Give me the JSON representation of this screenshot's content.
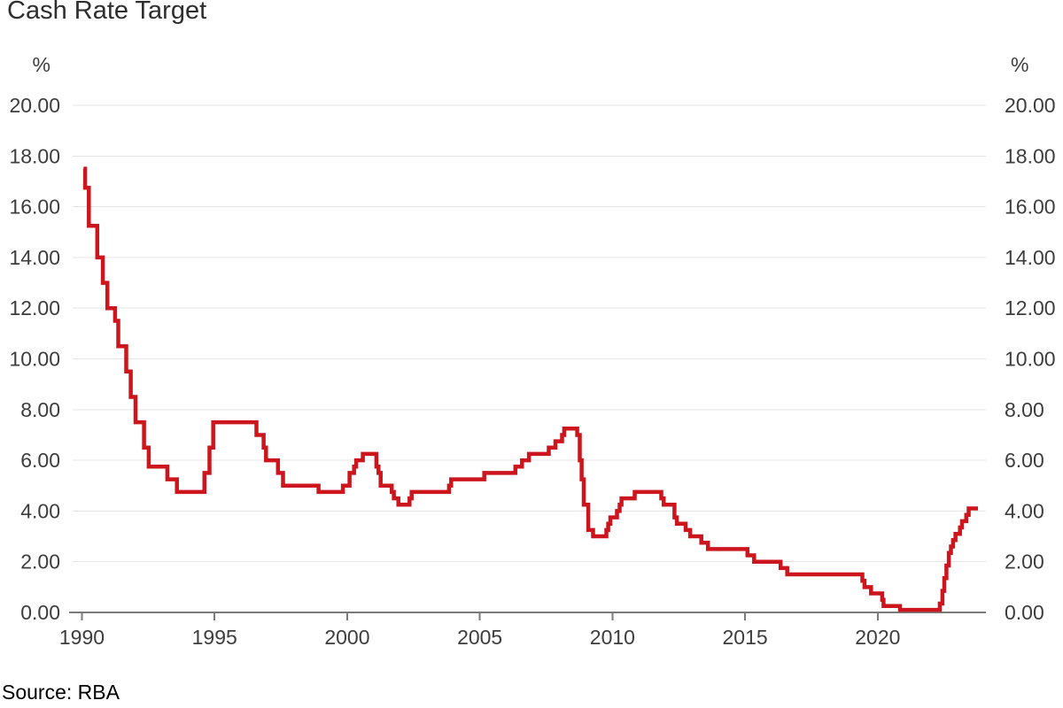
{
  "page": {
    "title": "Cash Rate Target",
    "source": "Source: RBA"
  },
  "chart_data": {
    "type": "line",
    "title": "Cash Rate Target",
    "source": "Source: RBA",
    "unit_left": "%",
    "unit_right": "%",
    "line_color": "#cc151c",
    "grid_color": "#e4e4e4",
    "axis_color": "#7a7a7a",
    "text_color": "#3d3d3d",
    "grid": true,
    "legend_position": "none",
    "xlim": [
      1989.65,
      2024.08
    ],
    "ylim": [
      0,
      20
    ],
    "x_ticks": [
      1990,
      1995,
      2000,
      2005,
      2010,
      2015,
      2020
    ],
    "y_ticks": [
      0,
      2,
      4,
      6,
      8,
      10,
      12,
      14,
      16,
      18,
      20
    ],
    "y_tick_labels": [
      "0.00",
      "2.00",
      "4.00",
      "6.00",
      "8.00",
      "10.00",
      "12.00",
      "14.00",
      "16.00",
      "18.00",
      "20.00"
    ],
    "series": [
      {
        "name": "Cash Rate Target",
        "step": "after",
        "end_x": 2023.78,
        "points": [
          [
            1990.06,
            17.5
          ],
          [
            1990.12,
            16.75
          ],
          [
            1990.26,
            15.25
          ],
          [
            1990.58,
            14.0
          ],
          [
            1990.79,
            13.0
          ],
          [
            1990.96,
            12.0
          ],
          [
            1991.25,
            11.5
          ],
          [
            1991.37,
            10.5
          ],
          [
            1991.67,
            9.5
          ],
          [
            1991.84,
            8.5
          ],
          [
            1992.02,
            7.5
          ],
          [
            1992.34,
            6.5
          ],
          [
            1992.52,
            5.75
          ],
          [
            1993.22,
            5.25
          ],
          [
            1993.58,
            4.75
          ],
          [
            1994.62,
            5.5
          ],
          [
            1994.81,
            6.5
          ],
          [
            1994.95,
            7.5
          ],
          [
            1996.58,
            7.0
          ],
          [
            1996.85,
            6.5
          ],
          [
            1996.94,
            6.0
          ],
          [
            1997.39,
            5.5
          ],
          [
            1997.58,
            5.0
          ],
          [
            1998.92,
            4.75
          ],
          [
            1999.84,
            5.0
          ],
          [
            2000.09,
            5.5
          ],
          [
            2000.26,
            5.75
          ],
          [
            2000.34,
            6.0
          ],
          [
            2000.59,
            6.25
          ],
          [
            2001.1,
            5.75
          ],
          [
            2001.18,
            5.5
          ],
          [
            2001.26,
            5.0
          ],
          [
            2001.68,
            4.75
          ],
          [
            2001.76,
            4.5
          ],
          [
            2001.93,
            4.25
          ],
          [
            2002.35,
            4.5
          ],
          [
            2002.43,
            4.75
          ],
          [
            2003.84,
            5.0
          ],
          [
            2003.92,
            5.25
          ],
          [
            2005.17,
            5.5
          ],
          [
            2006.34,
            5.75
          ],
          [
            2006.59,
            6.0
          ],
          [
            2006.85,
            6.25
          ],
          [
            2007.6,
            6.5
          ],
          [
            2007.85,
            6.75
          ],
          [
            2008.1,
            7.0
          ],
          [
            2008.18,
            7.25
          ],
          [
            2008.67,
            7.0
          ],
          [
            2008.77,
            6.0
          ],
          [
            2008.84,
            5.25
          ],
          [
            2008.92,
            4.25
          ],
          [
            2009.09,
            3.25
          ],
          [
            2009.27,
            3.0
          ],
          [
            2009.77,
            3.25
          ],
          [
            2009.84,
            3.5
          ],
          [
            2009.92,
            3.75
          ],
          [
            2010.17,
            4.0
          ],
          [
            2010.27,
            4.25
          ],
          [
            2010.34,
            4.5
          ],
          [
            2010.84,
            4.75
          ],
          [
            2011.84,
            4.5
          ],
          [
            2011.93,
            4.25
          ],
          [
            2012.34,
            3.75
          ],
          [
            2012.43,
            3.5
          ],
          [
            2012.76,
            3.25
          ],
          [
            2012.93,
            3.0
          ],
          [
            2013.35,
            2.75
          ],
          [
            2013.6,
            2.5
          ],
          [
            2015.09,
            2.25
          ],
          [
            2015.34,
            2.0
          ],
          [
            2016.34,
            1.75
          ],
          [
            2016.59,
            1.5
          ],
          [
            2019.42,
            1.25
          ],
          [
            2019.5,
            1.0
          ],
          [
            2019.75,
            0.75
          ],
          [
            2020.17,
            0.5
          ],
          [
            2020.22,
            0.25
          ],
          [
            2020.84,
            0.1
          ],
          [
            2022.34,
            0.35
          ],
          [
            2022.44,
            0.85
          ],
          [
            2022.51,
            1.35
          ],
          [
            2022.59,
            1.85
          ],
          [
            2022.68,
            2.35
          ],
          [
            2022.76,
            2.6
          ],
          [
            2022.84,
            2.85
          ],
          [
            2022.93,
            3.1
          ],
          [
            2023.1,
            3.35
          ],
          [
            2023.18,
            3.6
          ],
          [
            2023.34,
            3.85
          ],
          [
            2023.43,
            4.1
          ]
        ]
      }
    ]
  }
}
